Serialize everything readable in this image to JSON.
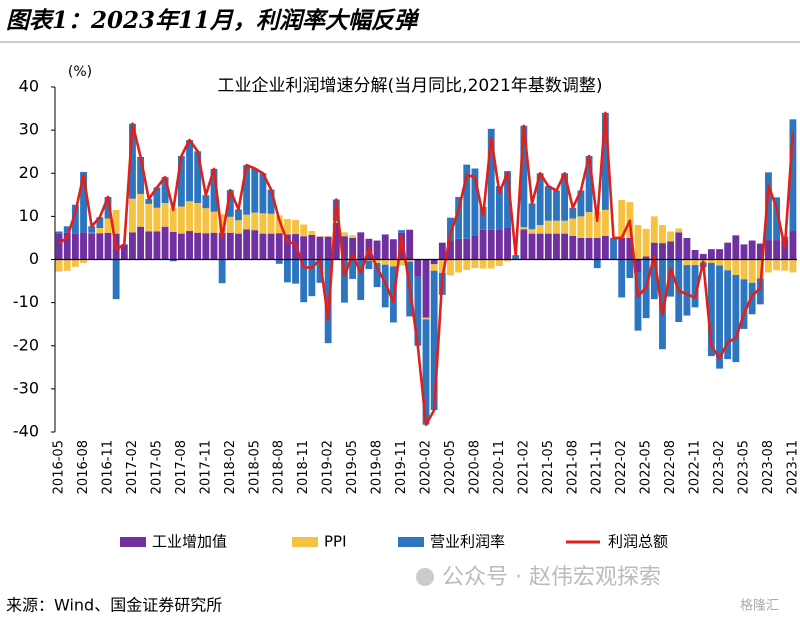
{
  "header": {
    "title": "图表1：2023年11月，利润率大幅反弹"
  },
  "chart_data": {
    "type": "bar",
    "stacked": true,
    "title": "工业企业利润增速分解(当月同比,2021年基数调整)",
    "y_unit": "(%)",
    "ylim": [
      -40,
      40
    ],
    "yticks": [
      -40,
      -30,
      -20,
      -10,
      0,
      10,
      20,
      30,
      40
    ],
    "grid": false,
    "categories": [
      "2016-05",
      null,
      null,
      "2016-08",
      null,
      null,
      "2016-11",
      null,
      null,
      "2017-02",
      null,
      null,
      "2017-05",
      null,
      null,
      "2017-08",
      null,
      null,
      "2017-11",
      null,
      null,
      "2018-02",
      null,
      null,
      "2018-05",
      null,
      null,
      "2018-08",
      null,
      null,
      "2018-11",
      null,
      null,
      "2019-02",
      null,
      null,
      "2019-05",
      null,
      null,
      "2019-08",
      null,
      null,
      "2019-11",
      null,
      null,
      "2020-02",
      null,
      null,
      "2020-05",
      null,
      null,
      "2020-08",
      null,
      null,
      "2020-11",
      null,
      null,
      "2021-02",
      null,
      null,
      "2021-05",
      null,
      null,
      "2021-08",
      null,
      null,
      "2021-11",
      null,
      null,
      "2022-02",
      null,
      null,
      "2022-05",
      null,
      null,
      "2022-08",
      null,
      null,
      "2022-11",
      null,
      null,
      "2023-02",
      null,
      null,
      "2023-05",
      null,
      null,
      "2023-08",
      null,
      null,
      "2023-11"
    ],
    "series": [
      {
        "name": "工业增加值",
        "type": "bar",
        "color": "#7030a0",
        "values": [
          6,
          6.2,
          6,
          6.3,
          6.1,
          6.1,
          6.2,
          6,
          3.5,
          6.3,
          7.6,
          6.5,
          6.5,
          7.6,
          6.4,
          6,
          6.6,
          6.2,
          6.1,
          6.2,
          6.2,
          6.2,
          6,
          7,
          6.8,
          6,
          6,
          6.1,
          5.8,
          5.9,
          5.4,
          5.7,
          5.3,
          5.3,
          8.5,
          5.4,
          5,
          6.3,
          4.8,
          4.4,
          5.8,
          4.7,
          6.2,
          6.9,
          -4,
          -13.5,
          -1.1,
          3.9,
          4.4,
          4.8,
          4.8,
          5.6,
          6.9,
          6.9,
          7,
          7.3,
          0,
          7,
          6,
          6,
          6,
          6,
          6,
          5.5,
          5,
          5,
          5,
          5.5,
          0,
          5,
          5,
          -2.9,
          0.7,
          3.9,
          3.8,
          4.2,
          6.3,
          5,
          2.2,
          1.3,
          2.4,
          2.4,
          3.9,
          5.6,
          3.5,
          4.4,
          3.7,
          4.5,
          4.5,
          4.6,
          6.6
        ]
      },
      {
        "name": "PPI",
        "type": "bar",
        "color": "#f5c242",
        "values": [
          -2.8,
          -2.6,
          -1.7,
          -0.8,
          0.1,
          1.2,
          3.3,
          5.5,
          0,
          7.8,
          7.6,
          6.4,
          5.5,
          5.5,
          5.5,
          6.3,
          6.9,
          6.9,
          5.8,
          4.9,
          4.3,
          3.7,
          3.1,
          3.4,
          4.1,
          4.7,
          4.6,
          4.1,
          3.6,
          3.3,
          2.7,
          0.9,
          0.1,
          0.1,
          0.4,
          0.9,
          0.6,
          0,
          -0.3,
          -0.8,
          -1.2,
          -1.6,
          -1.4,
          -0.5,
          0,
          -0.4,
          -1.5,
          -3.1,
          -3.7,
          -3,
          -2.4,
          -2,
          -2.1,
          -2.1,
          -1.5,
          -0.4,
          0,
          0.5,
          1,
          2,
          3,
          3,
          3,
          4,
          5,
          6,
          6,
          6,
          0,
          8.8,
          8.3,
          8,
          6.4,
          6.1,
          4.2,
          2.3,
          0.9,
          -1.3,
          -1.3,
          -0.7,
          -0.8,
          -1.4,
          -2.5,
          -3.6,
          -4.6,
          -5.4,
          -4.4,
          -3,
          -2.5,
          -2.6,
          -3
        ]
      },
      {
        "name": "营业利润率",
        "type": "bar",
        "color": "#2e75c0",
        "values": [
          0.5,
          1.5,
          6.7,
          14,
          1.5,
          2.5,
          5,
          -9.2,
          0,
          17.4,
          8.6,
          1.1,
          4.7,
          6,
          -0.4,
          11.7,
          14.2,
          12,
          3,
          9.9,
          -5.5,
          6.2,
          2.5,
          11.5,
          10.2,
          9.3,
          5.6,
          -1,
          -5.3,
          -5.6,
          -9.9,
          -8.5,
          -5.4,
          -19.4,
          5,
          -10,
          -4.5,
          -9.4,
          -1.9,
          -5.6,
          -9.9,
          -13,
          0.6,
          -12.7,
          -16,
          -24.4,
          -32.3,
          -5.1,
          5.3,
          9.7,
          17.2,
          15.5,
          5.3,
          23.4,
          10,
          13.2,
          1,
          23.5,
          6,
          12,
          8,
          7,
          11,
          2.5,
          6,
          13,
          -2,
          22.5,
          5,
          -8.8,
          -4.3,
          -13.6,
          -13.6,
          -9.2,
          -20.8,
          -8.6,
          -14.5,
          -11.7,
          -9.8,
          -1.1,
          -21.6,
          -23.9,
          -20.6,
          -20.2,
          -11.5,
          -7.3,
          -6,
          15.7,
          9.9,
          0.7,
          25.9
        ]
      },
      {
        "name": "利润总额",
        "type": "line",
        "color": "#e0201b",
        "values": [
          3.7,
          5.1,
          11,
          19.5,
          7.7,
          9.8,
          14.5,
          2.3,
          3.5,
          31.5,
          23.8,
          14,
          16.7,
          19.1,
          11.5,
          24,
          27.7,
          25.1,
          14.9,
          21,
          5,
          16.1,
          11.6,
          21.9,
          21.1,
          20,
          16.2,
          9.2,
          4.1,
          3.6,
          -1.8,
          -1.9,
          0,
          -14,
          13.9,
          -3.7,
          1.1,
          -3.1,
          2.6,
          -2,
          -5.3,
          -9.9,
          5.4,
          -6.3,
          -20,
          -38.3,
          -34.9,
          -4.3,
          6,
          11.5,
          19.6,
          19.1,
          10.1,
          28.2,
          15.5,
          20.1,
          1,
          31,
          13,
          20,
          17,
          16,
          20,
          12,
          16,
          24,
          9,
          34,
          5,
          5,
          9,
          -8.5,
          -6.5,
          0.8,
          -12.8,
          -2.1,
          -7.3,
          -8,
          -8.9,
          -0.5,
          -20,
          -22.9,
          -19.2,
          -18.2,
          -12.6,
          -8.3,
          -6.7,
          17.2,
          11.9,
          2.7,
          29.5
        ]
      }
    ]
  },
  "watermark": "公众号 · 赵伟宏观探索",
  "logo": "格隆汇",
  "source": "来源：Wind、国金证券研究所"
}
